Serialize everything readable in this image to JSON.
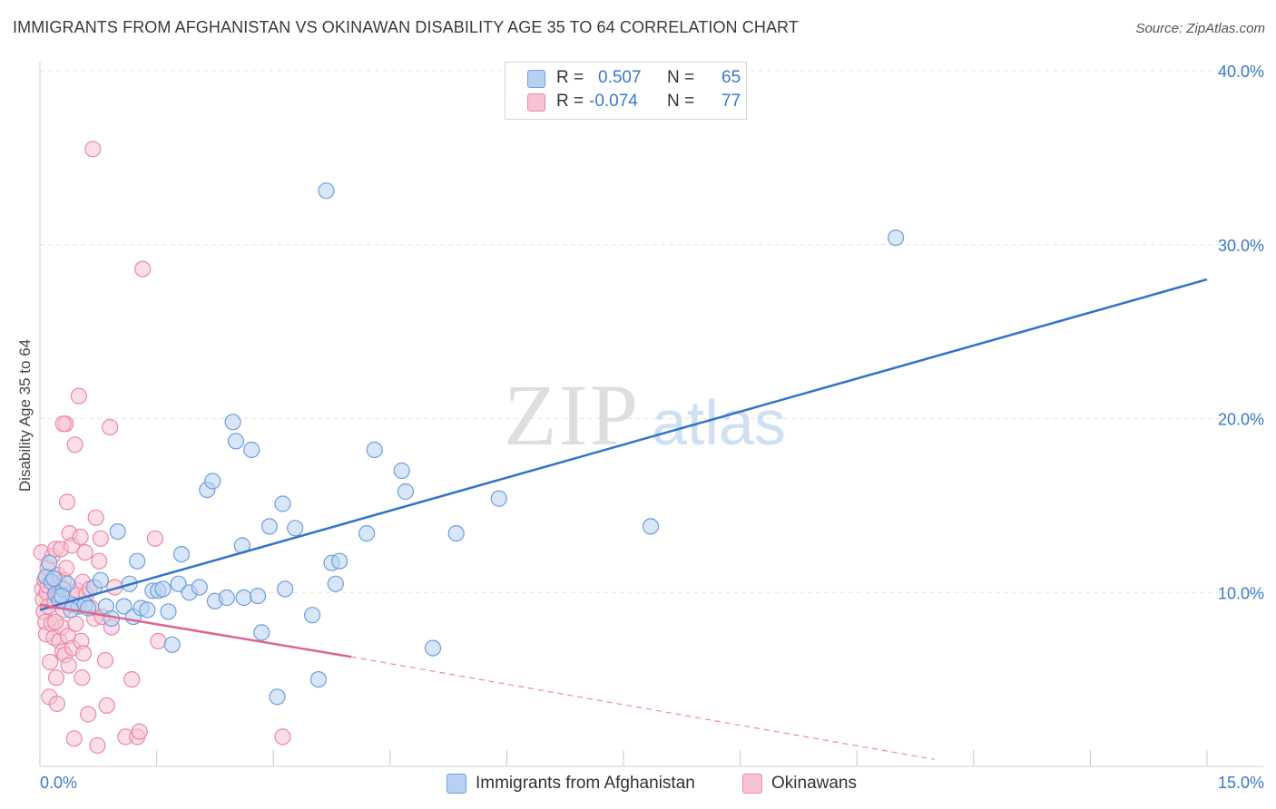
{
  "title": "IMMIGRANTS FROM AFGHANISTAN VS OKINAWAN DISABILITY AGE 35 TO 64 CORRELATION CHART",
  "source": "Source: ZipAtlas.com",
  "watermark": {
    "zip": "ZIP",
    "atlas": "atlas"
  },
  "legend": {
    "r_label": "R =",
    "n_label": "N =",
    "series": [
      {
        "r": "0.507",
        "n": "65"
      },
      {
        "r": "-0.074",
        "n": "77"
      }
    ]
  },
  "colors": {
    "blue_fill": "#b8d1f2",
    "blue_stroke": "#6d9fdc",
    "blue_line": "#2f74c8",
    "pink_fill": "#f7c3d3",
    "pink_stroke": "#e98aa8",
    "pink_line": "#e0638f",
    "tick_label": "#3b78c8",
    "grid": "#e4e4e4"
  },
  "chart_data": {
    "type": "scatter",
    "title": "IMMIGRANTS FROM AFGHANISTAN VS OKINAWAN DISABILITY AGE 35 TO 64 CORRELATION CHART",
    "xlabel": "",
    "ylabel": "Disability Age 35 to 64",
    "xlim": [
      0,
      15
    ],
    "ylim": [
      0,
      40
    ],
    "x_tick_labels": [
      "0.0%",
      "15.0%"
    ],
    "y_ticks": [
      10,
      20,
      30,
      40
    ],
    "y_tick_labels": [
      "10.0%",
      "20.0%",
      "30.0%",
      "40.0%"
    ],
    "grid": true,
    "legend_position": "top-center",
    "series": [
      {
        "name": "Immigrants from Afghanistan",
        "color": "#6d9fdc",
        "trend": {
          "x": [
            0,
            15
          ],
          "y": [
            9.0,
            28.0
          ]
        },
        "points": [
          [
            0.08,
            10.9
          ],
          [
            0.12,
            11.7
          ],
          [
            0.15,
            10.6
          ],
          [
            0.2,
            9.9
          ],
          [
            0.25,
            9.5
          ],
          [
            0.3,
            10.2
          ],
          [
            0.35,
            10.5
          ],
          [
            0.42,
            9.3
          ],
          [
            0.5,
            9.2
          ],
          [
            0.58,
            9.3
          ],
          [
            0.62,
            9.1
          ],
          [
            0.7,
            10.3
          ],
          [
            0.78,
            10.7
          ],
          [
            0.85,
            9.2
          ],
          [
            0.92,
            8.5
          ],
          [
            1.0,
            13.5
          ],
          [
            1.08,
            9.2
          ],
          [
            1.15,
            10.5
          ],
          [
            1.2,
            8.6
          ],
          [
            1.25,
            11.8
          ],
          [
            1.3,
            9.1
          ],
          [
            1.38,
            9.0
          ],
          [
            1.45,
            10.1
          ],
          [
            1.52,
            10.1
          ],
          [
            1.58,
            10.2
          ],
          [
            1.65,
            8.9
          ],
          [
            1.7,
            7.0
          ],
          [
            1.78,
            10.5
          ],
          [
            1.82,
            12.2
          ],
          [
            1.92,
            10.0
          ],
          [
            2.05,
            10.3
          ],
          [
            2.15,
            15.9
          ],
          [
            2.22,
            16.4
          ],
          [
            2.25,
            9.5
          ],
          [
            2.4,
            9.7
          ],
          [
            2.48,
            19.8
          ],
          [
            2.52,
            18.7
          ],
          [
            2.6,
            12.7
          ],
          [
            2.62,
            9.7
          ],
          [
            2.72,
            18.2
          ],
          [
            2.8,
            9.8
          ],
          [
            2.85,
            7.7
          ],
          [
            2.95,
            13.8
          ],
          [
            3.05,
            4.0
          ],
          [
            3.12,
            15.1
          ],
          [
            3.15,
            10.2
          ],
          [
            3.28,
            13.7
          ],
          [
            3.5,
            8.7
          ],
          [
            3.58,
            5.0
          ],
          [
            3.68,
            33.1
          ],
          [
            3.75,
            11.7
          ],
          [
            3.8,
            10.5
          ],
          [
            3.85,
            11.8
          ],
          [
            4.2,
            13.4
          ],
          [
            4.3,
            18.2
          ],
          [
            4.65,
            17.0
          ],
          [
            4.7,
            15.8
          ],
          [
            5.05,
            6.8
          ],
          [
            5.35,
            13.4
          ],
          [
            5.9,
            15.4
          ],
          [
            7.85,
            13.8
          ],
          [
            11.0,
            30.4
          ],
          [
            0.18,
            10.8
          ],
          [
            0.28,
            9.8
          ],
          [
            0.4,
            9.0
          ]
        ]
      },
      {
        "name": "Okinawans",
        "color": "#e98aa8",
        "trend": {
          "x": [
            0,
            4.0
          ],
          "y": [
            9.3,
            6.3
          ]
        },
        "trend_dashed": {
          "x": [
            4.0,
            11.5
          ],
          "y": [
            6.3,
            0.4
          ]
        },
        "points": [
          [
            0.02,
            12.3
          ],
          [
            0.03,
            10.2
          ],
          [
            0.04,
            9.6
          ],
          [
            0.05,
            8.9
          ],
          [
            0.06,
            10.7
          ],
          [
            0.07,
            8.3
          ],
          [
            0.08,
            7.6
          ],
          [
            0.09,
            10.0
          ],
          [
            0.1,
            11.4
          ],
          [
            0.11,
            9.2
          ],
          [
            0.12,
            4.0
          ],
          [
            0.13,
            6.0
          ],
          [
            0.15,
            8.2
          ],
          [
            0.16,
            12.1
          ],
          [
            0.17,
            10.5
          ],
          [
            0.18,
            7.4
          ],
          [
            0.19,
            9.5
          ],
          [
            0.2,
            12.5
          ],
          [
            0.21,
            5.1
          ],
          [
            0.22,
            3.6
          ],
          [
            0.23,
            11.0
          ],
          [
            0.24,
            9.8
          ],
          [
            0.25,
            7.2
          ],
          [
            0.26,
            10.3
          ],
          [
            0.27,
            12.5
          ],
          [
            0.28,
            8.0
          ],
          [
            0.29,
            6.6
          ],
          [
            0.3,
            9.0
          ],
          [
            0.31,
            10.7
          ],
          [
            0.32,
            6.4
          ],
          [
            0.33,
            19.7
          ],
          [
            0.34,
            11.4
          ],
          [
            0.35,
            15.2
          ],
          [
            0.36,
            7.5
          ],
          [
            0.37,
            5.8
          ],
          [
            0.38,
            13.4
          ],
          [
            0.4,
            9.9
          ],
          [
            0.41,
            12.7
          ],
          [
            0.42,
            6.8
          ],
          [
            0.44,
            1.6
          ],
          [
            0.45,
            18.5
          ],
          [
            0.46,
            8.2
          ],
          [
            0.48,
            10.1
          ],
          [
            0.5,
            21.3
          ],
          [
            0.52,
            13.2
          ],
          [
            0.53,
            7.2
          ],
          [
            0.54,
            5.1
          ],
          [
            0.55,
            10.6
          ],
          [
            0.56,
            6.5
          ],
          [
            0.58,
            12.3
          ],
          [
            0.6,
            9.9
          ],
          [
            0.62,
            3.0
          ],
          [
            0.64,
            10.2
          ],
          [
            0.66,
            9.1
          ],
          [
            0.68,
            35.5
          ],
          [
            0.7,
            8.5
          ],
          [
            0.72,
            14.3
          ],
          [
            0.74,
            1.2
          ],
          [
            0.76,
            11.8
          ],
          [
            0.78,
            13.1
          ],
          [
            0.8,
            8.6
          ],
          [
            0.84,
            6.1
          ],
          [
            0.86,
            3.5
          ],
          [
            0.9,
            19.5
          ],
          [
            0.92,
            8.0
          ],
          [
            0.96,
            10.3
          ],
          [
            1.1,
            1.7
          ],
          [
            1.18,
            5.0
          ],
          [
            1.25,
            1.7
          ],
          [
            1.28,
            2.0
          ],
          [
            1.32,
            28.6
          ],
          [
            1.48,
            13.1
          ],
          [
            1.52,
            7.2
          ],
          [
            3.12,
            1.7
          ],
          [
            0.3,
            19.7
          ],
          [
            0.2,
            8.3
          ],
          [
            0.1,
            10.4
          ]
        ]
      }
    ]
  }
}
